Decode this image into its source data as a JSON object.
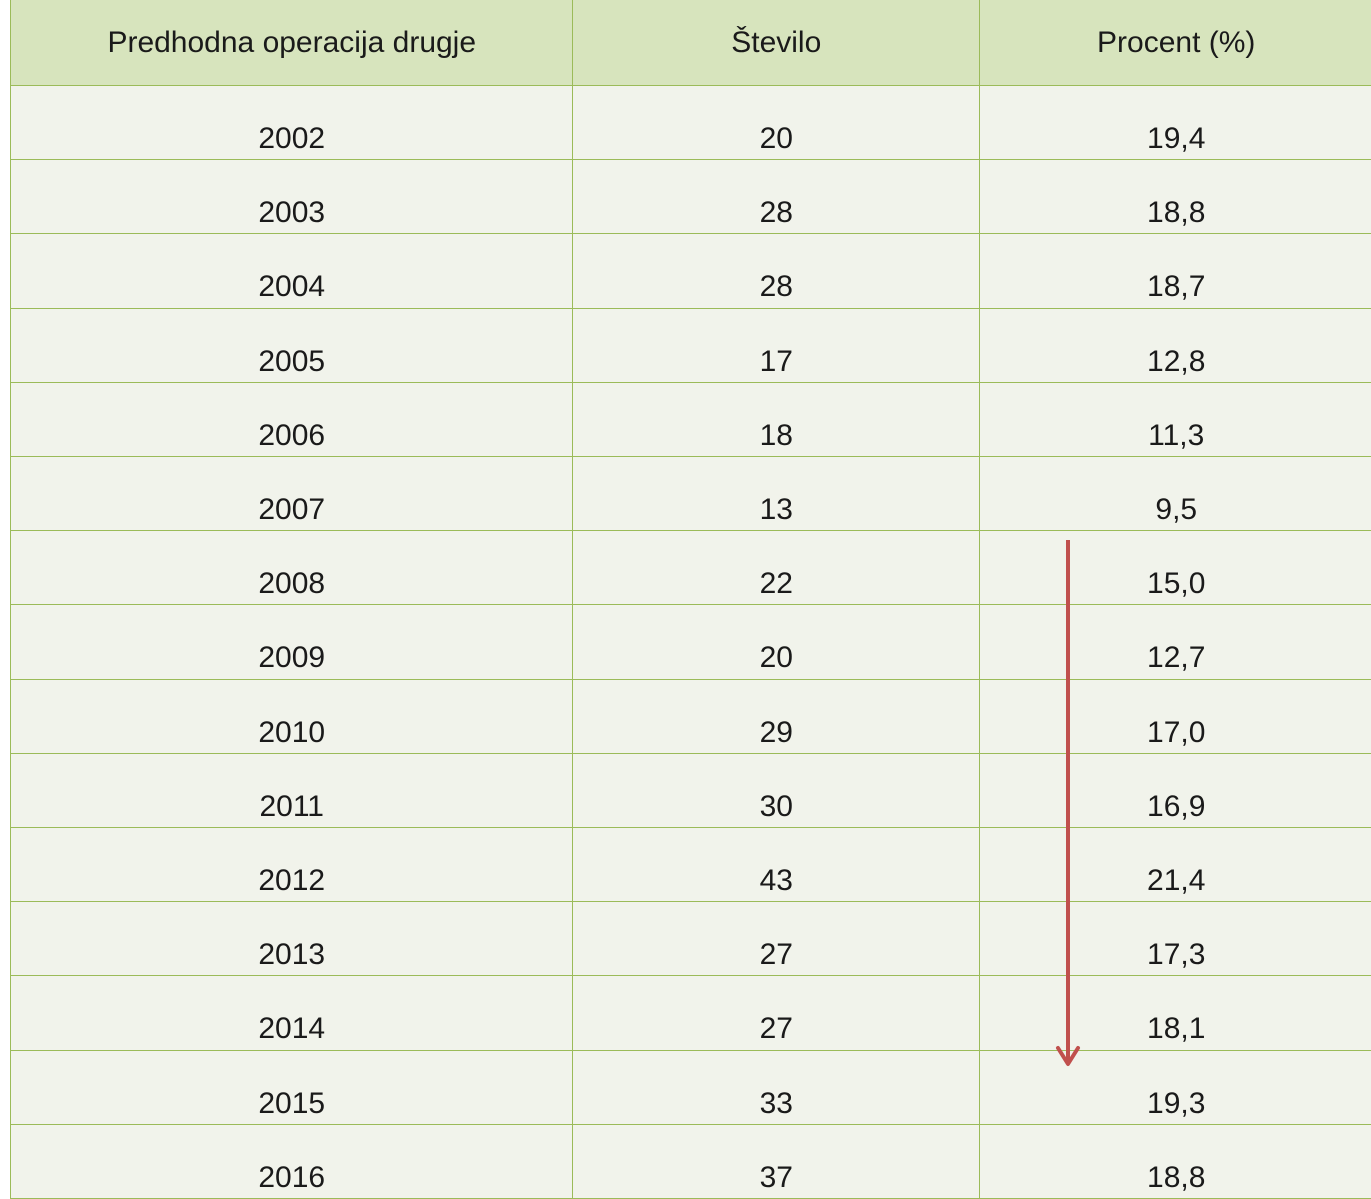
{
  "table": {
    "header": [
      "Predhodna operacija drugje",
      "Število",
      "Procent (%)"
    ],
    "rows": [
      [
        2002,
        20,
        "19,4"
      ],
      [
        2003,
        28,
        "18,8"
      ],
      [
        2004,
        28,
        "18,7"
      ],
      [
        2005,
        17,
        "12,8"
      ],
      [
        2006,
        18,
        "11,3"
      ],
      [
        2007,
        13,
        "9,5"
      ],
      [
        2008,
        22,
        "15,0"
      ],
      [
        2009,
        20,
        "12,7"
      ],
      [
        2010,
        29,
        "17,0"
      ],
      [
        2011,
        30,
        "16,9"
      ],
      [
        2012,
        43,
        "21,4"
      ],
      [
        2013,
        27,
        "17,3"
      ],
      [
        2014,
        27,
        "18,1"
      ],
      [
        2015,
        33,
        "19,3"
      ],
      [
        2016,
        37,
        "18,8"
      ]
    ]
  }
}
